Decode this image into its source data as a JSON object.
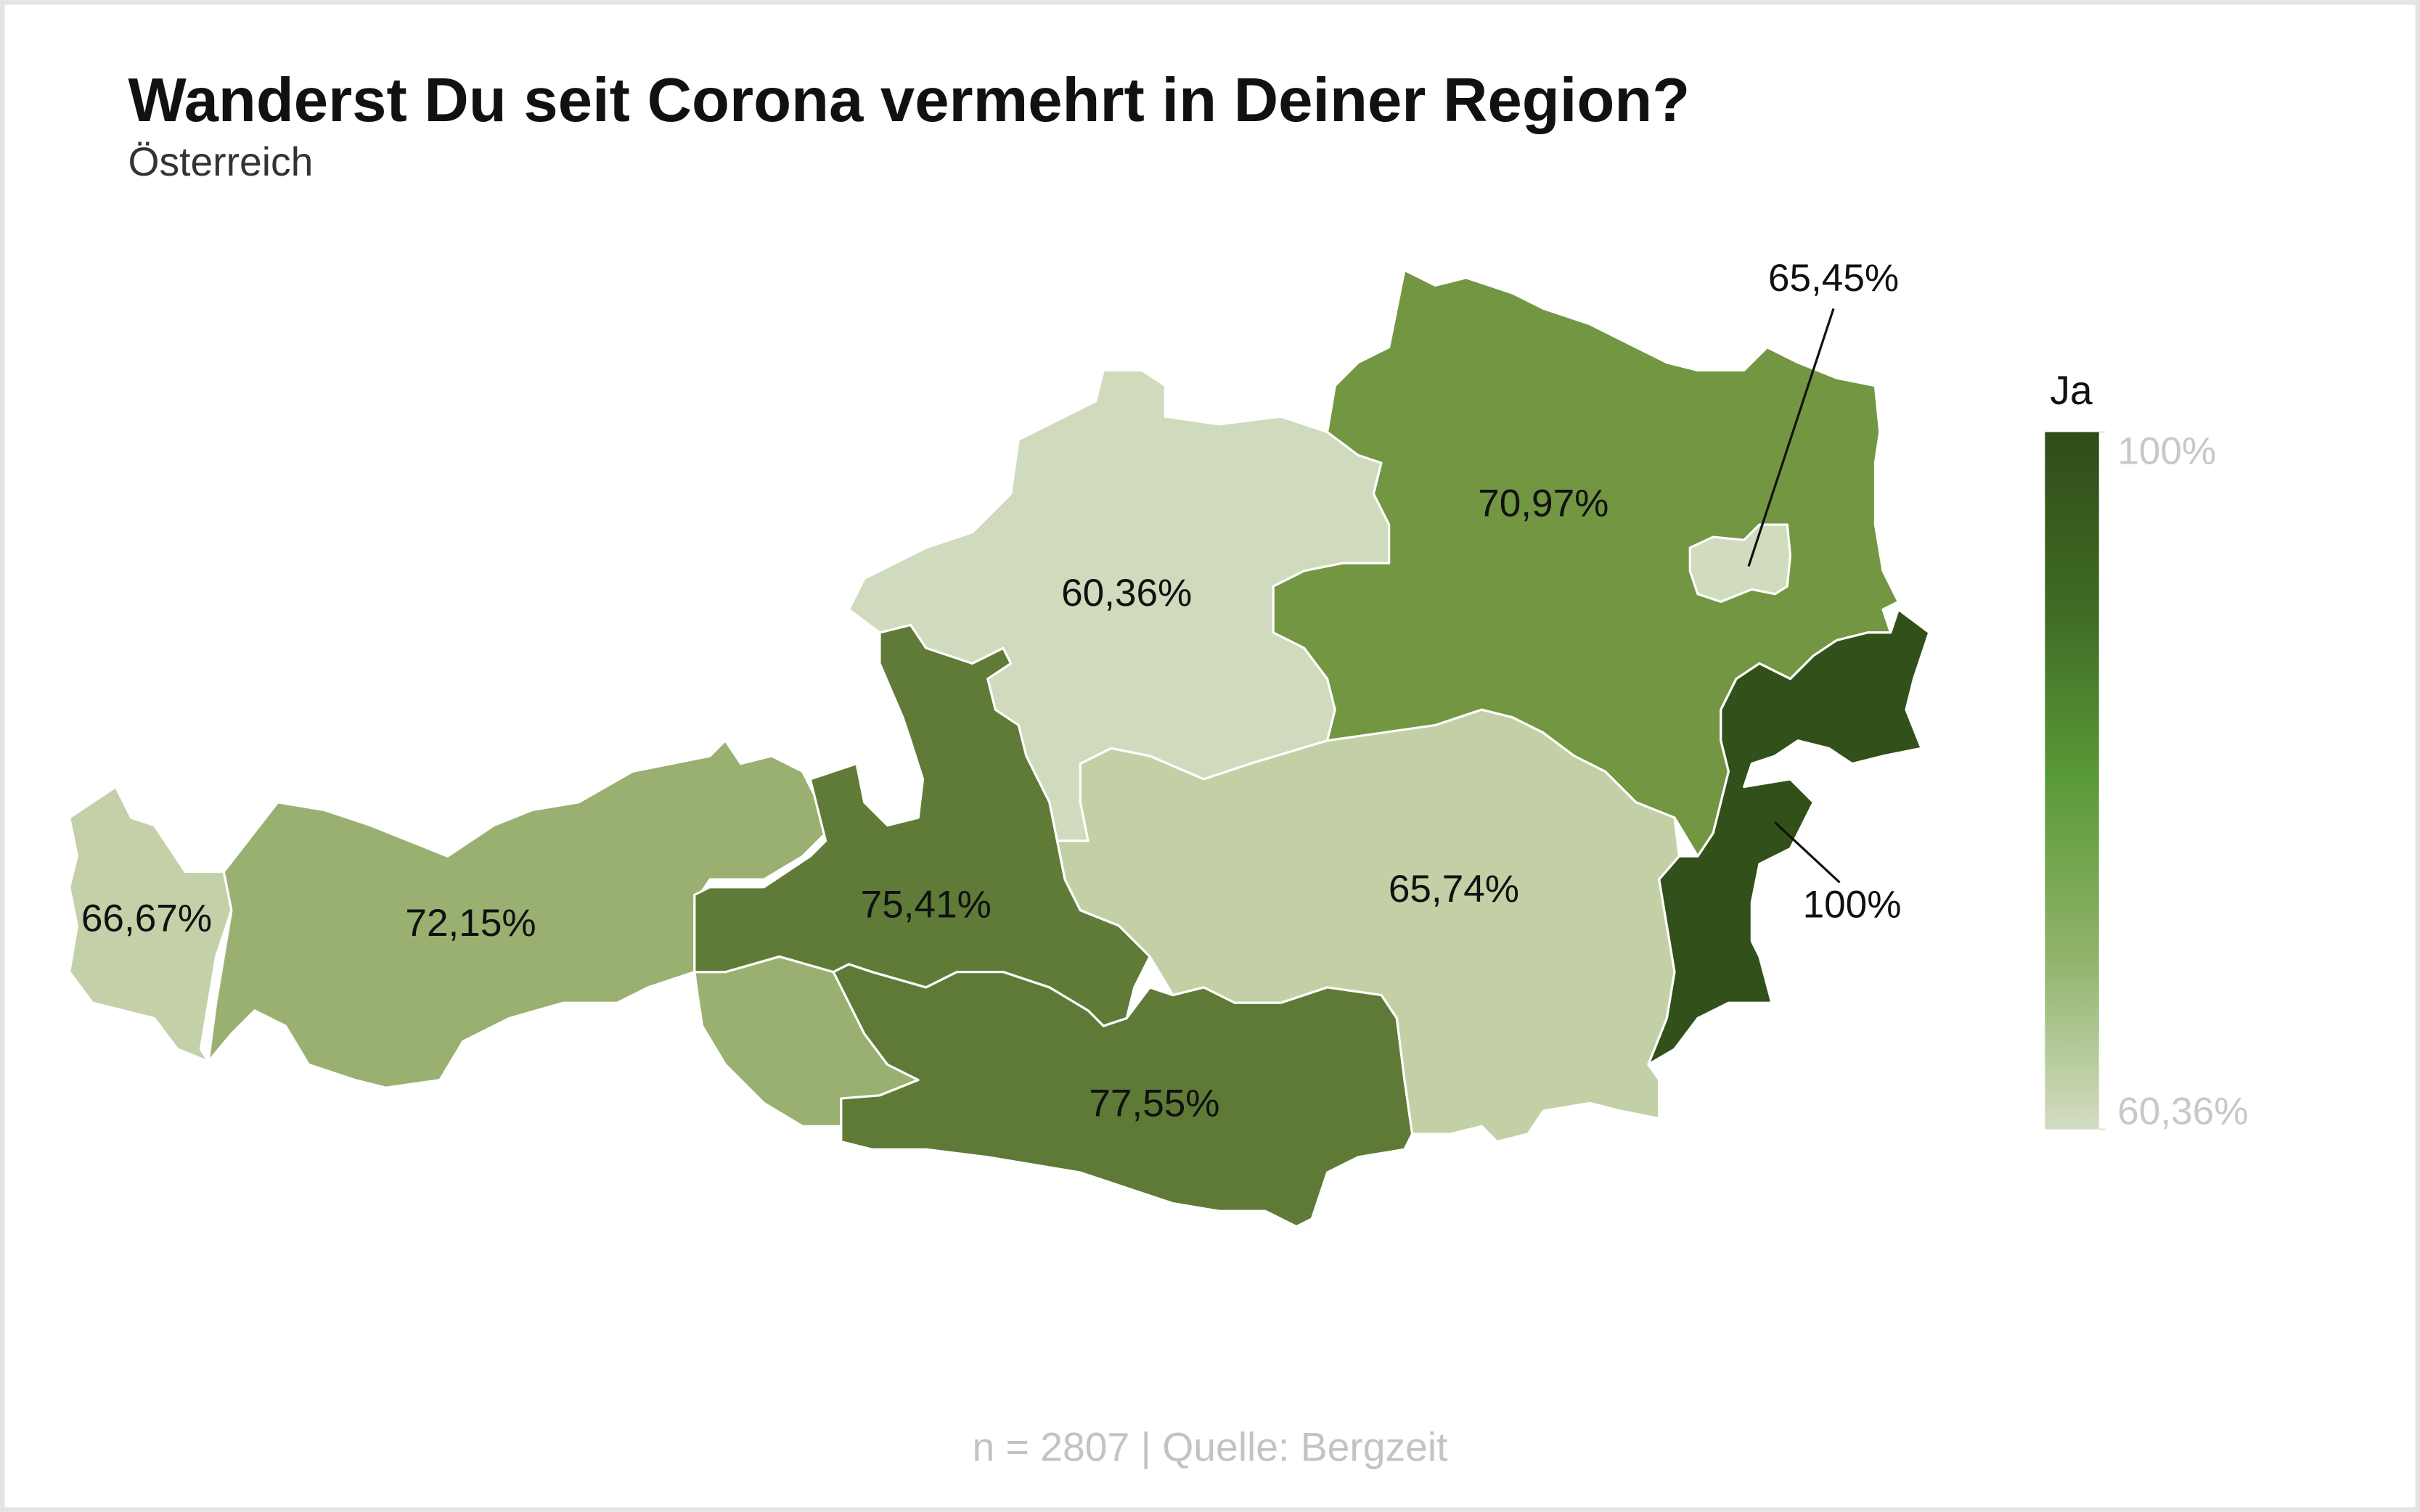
{
  "chart_data": {
    "type": "choropleth",
    "title": "Wanderst Du seit Corona vermehrt in Deiner Region?",
    "subtitle": "Österreich",
    "values": [
      66.67,
      72.15,
      75.41,
      60.36,
      70.97,
      65.45,
      65.74,
      77.55,
      100
    ],
    "value_labels": [
      "66,67%",
      "72,15%",
      "75,41%",
      "60,36%",
      "70,97%",
      "65,45%",
      "65,74%",
      "77,55%",
      "100%"
    ],
    "colors": [
      "#c3d0a8",
      "#9ab070",
      "#5f7b37",
      "#d0dabc",
      "#739643",
      "#d1dbbe",
      "#c3d0a6",
      "#5f7a36",
      "#31501a"
    ],
    "legend_title": "Ja",
    "clim": [
      60.36,
      100
    ],
    "cticks": [
      {
        "value": 100,
        "label": "100%"
      },
      {
        "value": 60.36,
        "label": "60,36%"
      }
    ],
    "colorscale": [
      "#d3dcc0",
      "#8fb36a",
      "#5a9a38",
      "#3f6a24",
      "#2f4d18"
    ],
    "source": "n = 2807 | Quelle: Bergzeit"
  }
}
